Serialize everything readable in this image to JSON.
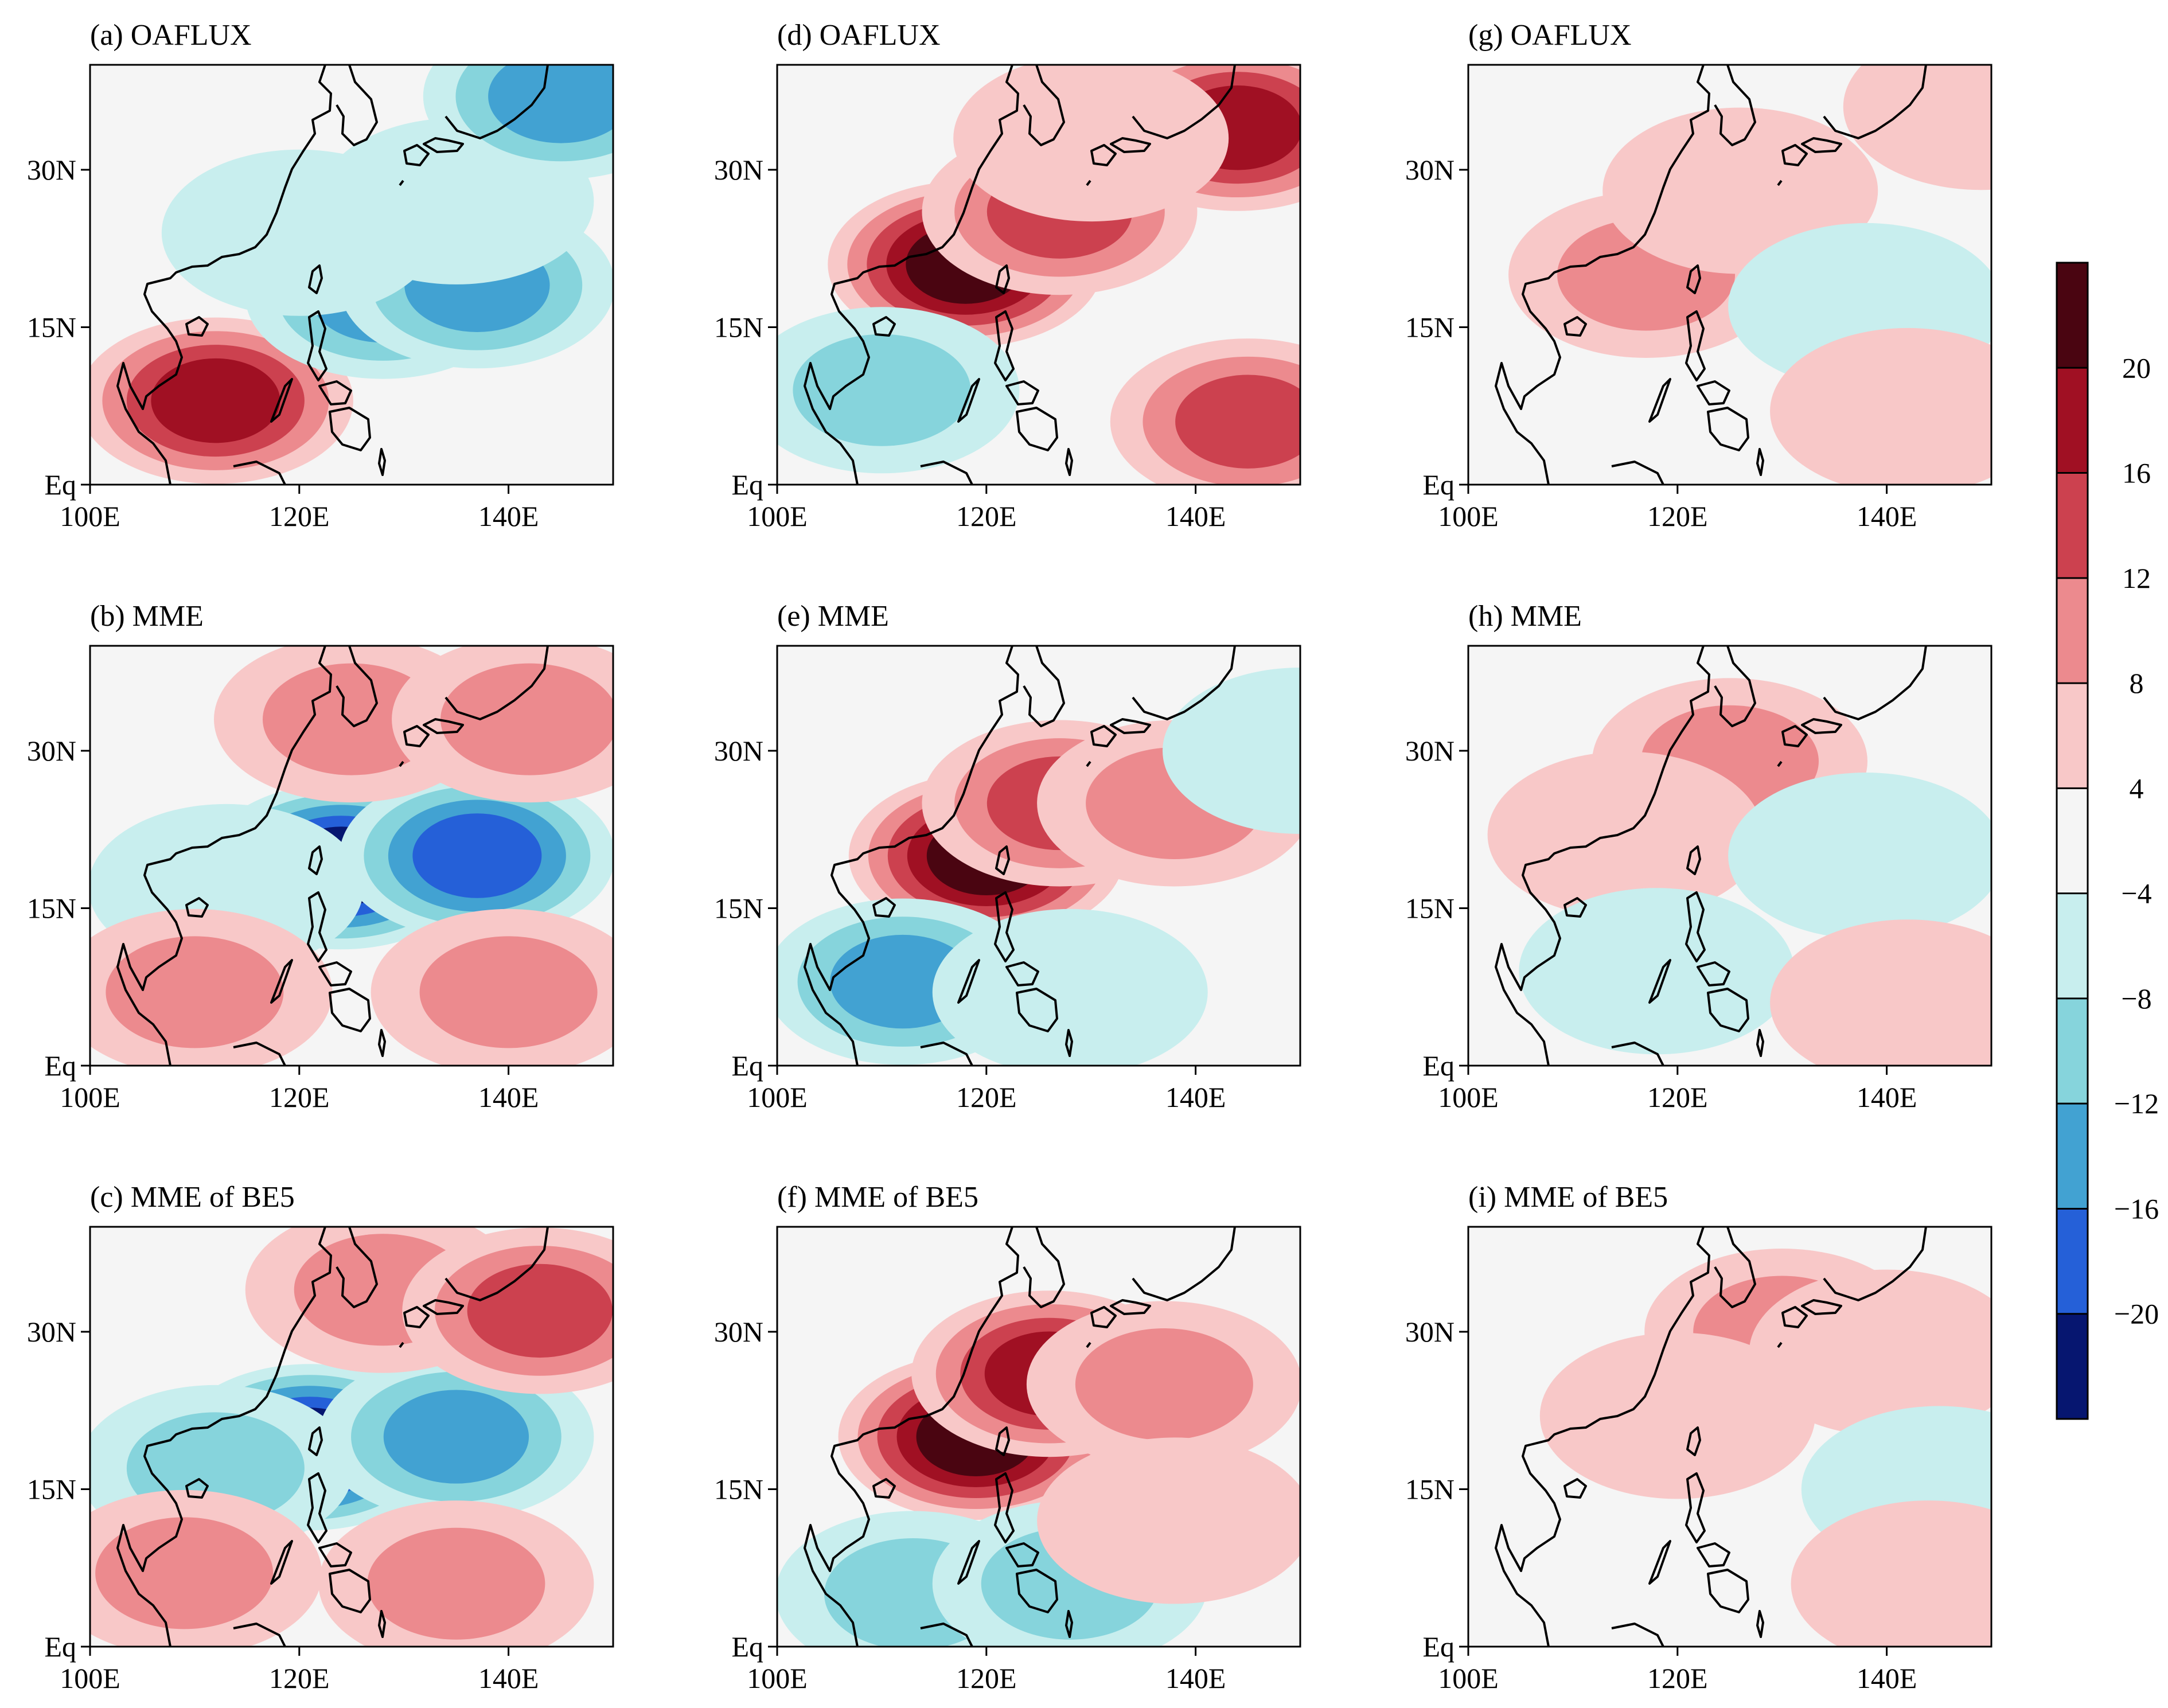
{
  "figure": {
    "colorbar": {
      "levels": [
        "20",
        "16",
        "12",
        "8",
        "4",
        "−4",
        "−8",
        "−12",
        "−16",
        "−20"
      ],
      "colors": [
        "#4a0511",
        "#a01023",
        "#cc414f",
        "#ec8a8e",
        "#f8c8c8",
        "#f5f5f5",
        "#c8eeee",
        "#86d4dc",
        "#42a2d2",
        "#2560d8",
        "#061670"
      ]
    },
    "axes": {
      "x_ticks": [
        "100E",
        "120E",
        "140E"
      ],
      "y_ticks": [
        "30N",
        "15N",
        "Eq"
      ]
    },
    "panels": [
      {
        "id": "a",
        "title": "(a) OAFLUX",
        "features": [
          {
            "lon": 112,
            "lat": 8,
            "value": 18
          },
          {
            "lon": 128,
            "lat": 18,
            "value": -13
          },
          {
            "lon": 137,
            "lat": 19,
            "value": -14
          },
          {
            "lon": 120,
            "lat": 24,
            "value": -8
          },
          {
            "lon": 135,
            "lat": 27,
            "value": -7
          },
          {
            "lon": 145,
            "lat": 37,
            "value": -16
          }
        ]
      },
      {
        "id": "b",
        "title": "(b) MME",
        "features": [
          {
            "lon": 124,
            "lat": 19,
            "value": -22
          },
          {
            "lon": 137,
            "lat": 20,
            "value": -17
          },
          {
            "lon": 113,
            "lat": 17,
            "value": -8
          },
          {
            "lon": 125,
            "lat": 33,
            "value": 10
          },
          {
            "lon": 142,
            "lat": 33,
            "value": 12
          },
          {
            "lon": 110,
            "lat": 7,
            "value": 12
          },
          {
            "lon": 140,
            "lat": 7,
            "value": 9
          }
        ]
      },
      {
        "id": "c",
        "title": "(c) MME of BE5",
        "features": [
          {
            "lon": 121,
            "lat": 19,
            "value": -22
          },
          {
            "lon": 135,
            "lat": 20,
            "value": -14
          },
          {
            "lon": 112,
            "lat": 17,
            "value": -9
          },
          {
            "lon": 128,
            "lat": 34,
            "value": 10
          },
          {
            "lon": 143,
            "lat": 32,
            "value": 14
          },
          {
            "lon": 109,
            "lat": 7,
            "value": 10
          },
          {
            "lon": 135,
            "lat": 6,
            "value": 9
          }
        ]
      },
      {
        "id": "d",
        "title": "(d) OAFLUX",
        "features": [
          {
            "lon": 118,
            "lat": 21,
            "value": 22
          },
          {
            "lon": 127,
            "lat": 26,
            "value": 13
          },
          {
            "lon": 145,
            "lat": 6,
            "value": 13
          },
          {
            "lon": 144,
            "lat": 34,
            "value": 18
          },
          {
            "lon": 110,
            "lat": 9,
            "value": -9
          },
          {
            "lon": 130,
            "lat": 33,
            "value": 6
          }
        ]
      },
      {
        "id": "e",
        "title": "(e) MME",
        "features": [
          {
            "lon": 120,
            "lat": 20,
            "value": 24
          },
          {
            "lon": 127,
            "lat": 25,
            "value": 16
          },
          {
            "lon": 138,
            "lat": 25,
            "value": 9
          },
          {
            "lon": 112,
            "lat": 8,
            "value": -14
          },
          {
            "lon": 128,
            "lat": 7,
            "value": -7
          },
          {
            "lon": 150,
            "lat": 30,
            "value": -7
          }
        ]
      },
      {
        "id": "f",
        "title": "(f) MME of BE5",
        "features": [
          {
            "lon": 119,
            "lat": 20,
            "value": 24
          },
          {
            "lon": 126,
            "lat": 26,
            "value": 18
          },
          {
            "lon": 137,
            "lat": 25,
            "value": 12
          },
          {
            "lon": 113,
            "lat": 5,
            "value": -10
          },
          {
            "lon": 128,
            "lat": 6,
            "value": -9
          },
          {
            "lon": 138,
            "lat": 12,
            "value": 6
          }
        ]
      },
      {
        "id": "g",
        "title": "(g) OAFLUX",
        "features": [
          {
            "lon": 117,
            "lat": 20,
            "value": 9
          },
          {
            "lon": 126,
            "lat": 28,
            "value": 6
          },
          {
            "lon": 149,
            "lat": 36,
            "value": 7
          },
          {
            "lon": 138,
            "lat": 17,
            "value": -6
          },
          {
            "lon": 142,
            "lat": 7,
            "value": 6
          }
        ]
      },
      {
        "id": "h",
        "title": "(h) MME",
        "features": [
          {
            "lon": 125,
            "lat": 29,
            "value": 9
          },
          {
            "lon": 115,
            "lat": 22,
            "value": 5
          },
          {
            "lon": 138,
            "lat": 20,
            "value": -8
          },
          {
            "lon": 118,
            "lat": 9,
            "value": -6
          },
          {
            "lon": 142,
            "lat": 6,
            "value": 5
          }
        ]
      },
      {
        "id": "i",
        "title": "(i) MME of BE5",
        "features": [
          {
            "lon": 130,
            "lat": 30,
            "value": 12
          },
          {
            "lon": 120,
            "lat": 22,
            "value": 7
          },
          {
            "lon": 140,
            "lat": 28,
            "value": 8
          },
          {
            "lon": 145,
            "lat": 15,
            "value": -5
          },
          {
            "lon": 144,
            "lat": 6,
            "value": 5
          }
        ]
      }
    ]
  }
}
